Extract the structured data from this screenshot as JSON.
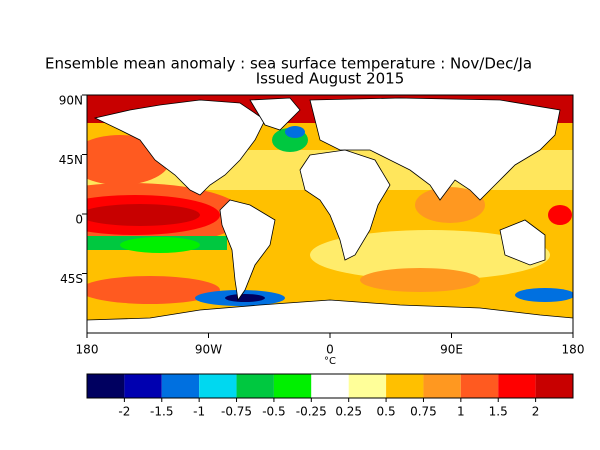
{
  "title": "Ensemble mean anomaly : sea surface temperature : Nov/Dec/Ja",
  "subtitle": "Issued August 2015",
  "map": {
    "xlim": [
      -180,
      180
    ],
    "ylim": [
      -90,
      90
    ],
    "xticks": [
      {
        "value": -180,
        "label": "180"
      },
      {
        "value": -90,
        "label": "90W"
      },
      0,
      {
        "value": 90,
        "label": "90E"
      },
      {
        "value": 180,
        "label": "180"
      }
    ],
    "yticks": [
      {
        "value": 90,
        "label": "90N"
      },
      {
        "value": 45,
        "label": "45N"
      },
      0,
      {
        "value": -45,
        "label": "45S"
      }
    ],
    "unit": "°C"
  },
  "colorbar": {
    "colors": [
      "#000060",
      "#0000b0",
      "#0070e0",
      "#00d8f0",
      "#00c840",
      "#00f000",
      "#ffffff",
      "#ffff99",
      "#ffc000",
      "#ff9820",
      "#ff5a20",
      "#ff0000",
      "#c80000"
    ],
    "ticks": [
      -2,
      -1.5,
      -1,
      -0.75,
      -0.5,
      -0.25,
      0.25,
      0.5,
      0.75,
      1,
      1.5,
      2
    ]
  }
}
